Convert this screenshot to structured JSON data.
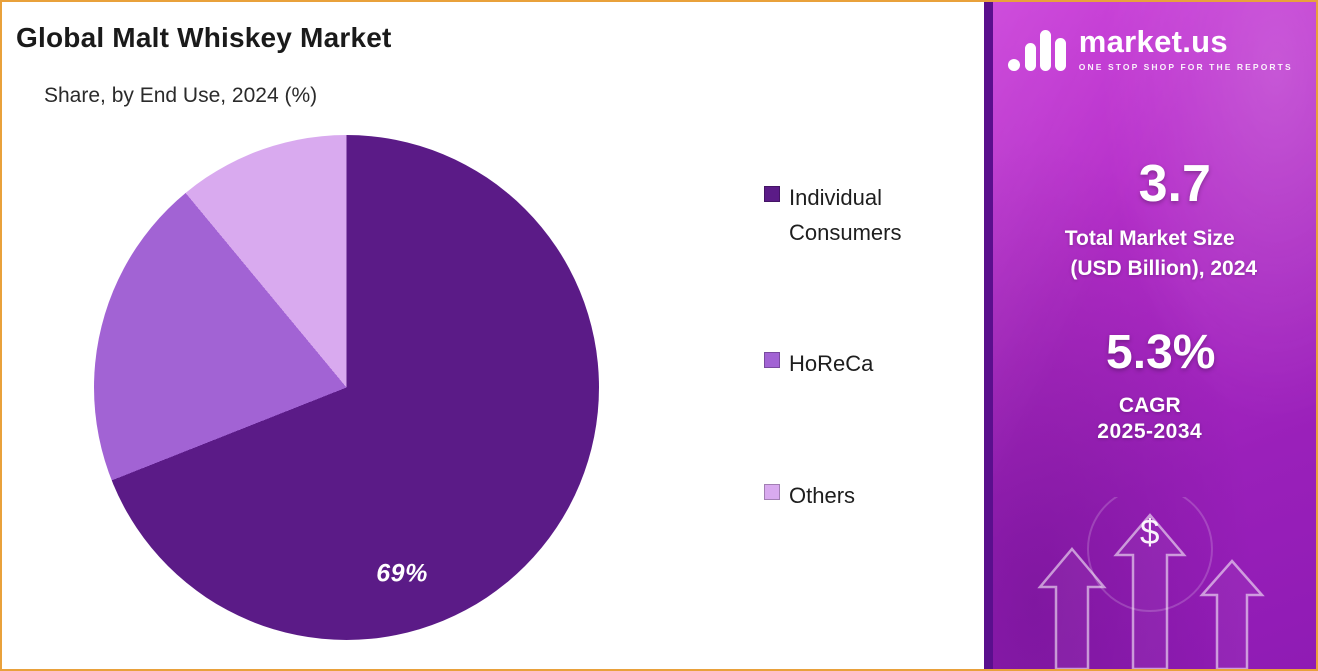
{
  "chart": {
    "title": "Global Malt Whiskey Market",
    "subtitle": "Share, by End Use, 2024 (%)"
  },
  "chart_data": {
    "type": "pie",
    "title": "Global Malt Whiskey Market",
    "subtitle": "Share, by End Use, 2024 (%)",
    "categories": [
      "Individual Consumers",
      "HoReCa",
      "Others"
    ],
    "values": [
      69,
      20,
      11
    ],
    "colors": [
      "#5b1b87",
      "#a263d4",
      "#d9aaef"
    ],
    "annotation": "69%",
    "legend_position": "right",
    "start_angle_deg": 0
  },
  "sidebar": {
    "logo_text": "market.us",
    "tagline": "ONE STOP SHOP FOR THE REPORTS",
    "market_size_value": "3.7",
    "market_size_label_line1": "Total Market Size",
    "market_size_label_line2": "(USD Billion), 2024",
    "cagr_value": "5.3%",
    "cagr_label": "CAGR",
    "cagr_period": "2025-2034",
    "dollar_symbol": "$",
    "colors": {
      "border": "#e9a13b",
      "gradient_start": "#c93ad8",
      "gradient_end": "#8f1bb4",
      "left_strip": "#5a0f8d"
    }
  }
}
